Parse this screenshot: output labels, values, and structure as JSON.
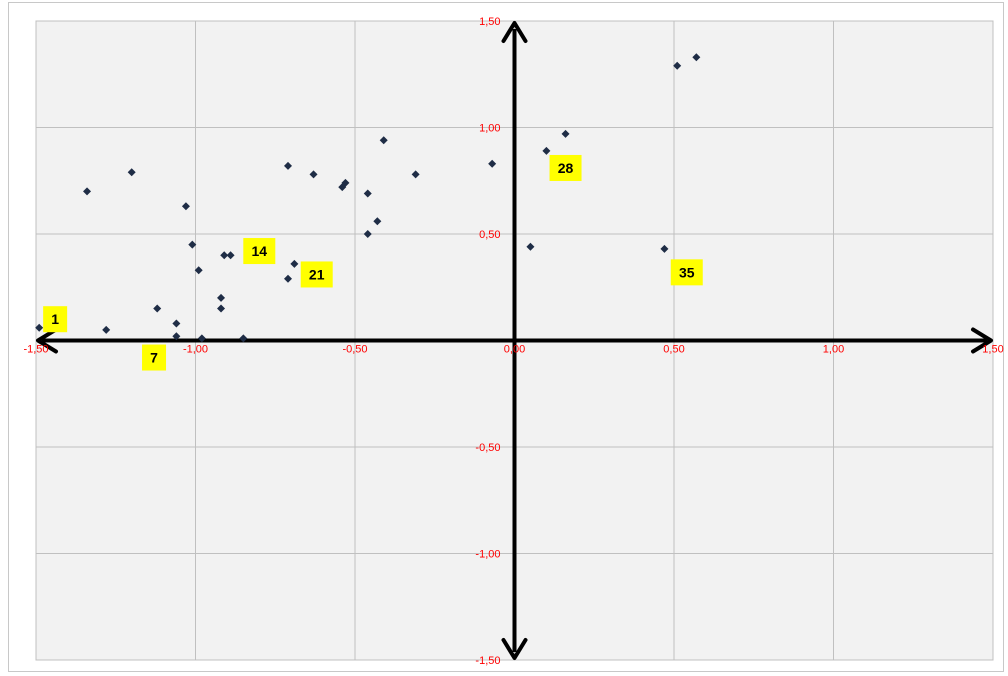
{
  "chart_data": {
    "type": "scatter",
    "title": "",
    "xlabel": "",
    "ylabel": "",
    "xlim": [
      -1.5,
      1.5
    ],
    "ylim": [
      -1.5,
      1.5
    ],
    "x_ticks": [
      "-1,50",
      "-1,00",
      "-0,50",
      "0,00",
      "0,50",
      "1,00",
      "1,50"
    ],
    "y_ticks": [
      "1,50",
      "1,00",
      "0,50",
      "0,00",
      "-0,50",
      "-1,00",
      "-1,50"
    ],
    "grid": true,
    "legend": "none",
    "colors": {
      "marker": "#1f2d46",
      "tick": "#ff0000",
      "callout_bg": "#ffff00",
      "grid": "#c0c0c0",
      "axis": "#000000"
    },
    "points": [
      {
        "x": -1.49,
        "y": 0.06
      },
      {
        "x": -1.28,
        "y": 0.05
      },
      {
        "x": -1.34,
        "y": 0.7
      },
      {
        "x": -1.2,
        "y": 0.79
      },
      {
        "x": -1.12,
        "y": 0.15
      },
      {
        "x": -1.06,
        "y": 0.08
      },
      {
        "x": -1.06,
        "y": 0.02
      },
      {
        "x": -1.03,
        "y": 0.63
      },
      {
        "x": -1.01,
        "y": 0.45
      },
      {
        "x": -0.99,
        "y": 0.33
      },
      {
        "x": -0.98,
        "y": 0.01
      },
      {
        "x": -0.92,
        "y": 0.2
      },
      {
        "x": -0.92,
        "y": 0.15
      },
      {
        "x": -0.91,
        "y": 0.4
      },
      {
        "x": -0.89,
        "y": 0.4
      },
      {
        "x": -0.85,
        "y": 0.01
      },
      {
        "x": -0.71,
        "y": 0.82
      },
      {
        "x": -0.71,
        "y": 0.29
      },
      {
        "x": -0.69,
        "y": 0.36
      },
      {
        "x": -0.63,
        "y": 0.78
      },
      {
        "x": -0.54,
        "y": 0.72
      },
      {
        "x": -0.53,
        "y": 0.74
      },
      {
        "x": -0.46,
        "y": 0.69
      },
      {
        "x": -0.46,
        "y": 0.5
      },
      {
        "x": -0.43,
        "y": 0.56
      },
      {
        "x": -0.41,
        "y": 0.94
      },
      {
        "x": -0.31,
        "y": 0.78
      },
      {
        "x": -0.07,
        "y": 0.83
      },
      {
        "x": 0.05,
        "y": 0.44
      },
      {
        "x": 0.1,
        "y": 0.89
      },
      {
        "x": 0.16,
        "y": 0.97
      },
      {
        "x": 0.47,
        "y": 0.43
      },
      {
        "x": 0.51,
        "y": 1.29
      },
      {
        "x": 0.57,
        "y": 1.33
      }
    ],
    "annotations": [
      {
        "text": "1",
        "x": -1.44,
        "y": 0.1
      },
      {
        "text": "7",
        "x": -1.13,
        "y": -0.08
      },
      {
        "text": "14",
        "x": -0.8,
        "y": 0.42
      },
      {
        "text": "21",
        "x": -0.62,
        "y": 0.31
      },
      {
        "text": "28",
        "x": 0.16,
        "y": 0.81
      },
      {
        "text": "35",
        "x": 0.54,
        "y": 0.32
      }
    ]
  }
}
